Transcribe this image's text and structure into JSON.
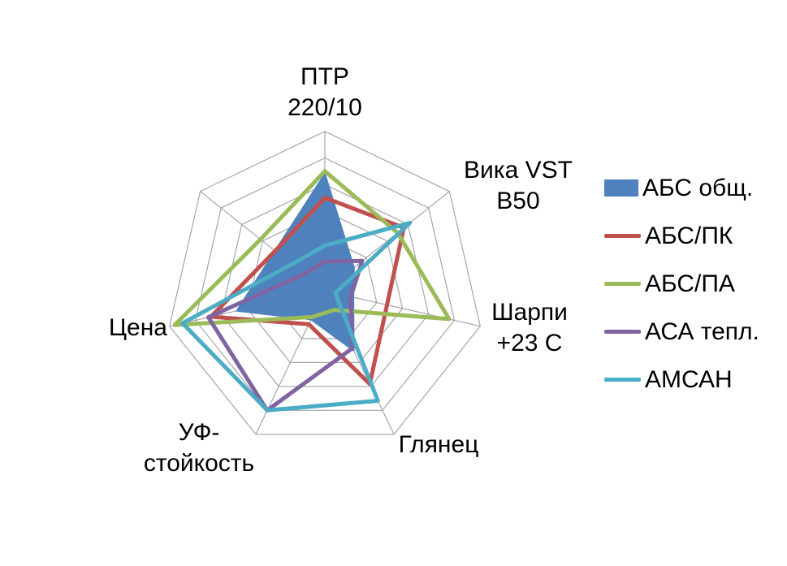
{
  "chart_data": {
    "type": "radar",
    "title": "",
    "categories": [
      "ПТР 220/10",
      "Вика VST B50",
      "Шарпи +23 С",
      "Глянец",
      "УФ-стойкость",
      "Цена",
      ""
    ],
    "category_label_lines": [
      [
        "ПТР",
        "220/10"
      ],
      [
        "Вика VST",
        "B50"
      ],
      [
        "Шарпи",
        "+23 С"
      ],
      [
        "Глянец"
      ],
      [
        "УФ-",
        "стойкость"
      ],
      [
        "Цена"
      ],
      []
    ],
    "r_axis": {
      "min": 0,
      "max": 6,
      "rings": 6,
      "tick_labels_visible": false
    },
    "grid": true,
    "legend_position": "right",
    "series": [
      {
        "name": "АБС общ.",
        "color": "#4F81BD",
        "style": "filled",
        "values": [
          4.4,
          1.4,
          1.1,
          2.5,
          1.2,
          3.4,
          2.4
        ]
      },
      {
        "name": "АБС/ПК",
        "color": "#C0504D",
        "style": "line",
        "values": [
          3.5,
          3.8,
          2.4,
          3.9,
          1.4,
          4.4,
          2.4
        ]
      },
      {
        "name": "АБС/ПА",
        "color": "#9BBB59",
        "style": "line",
        "values": [
          4.5,
          3.5,
          4.8,
          0.8,
          1.1,
          5.8,
          3.1
        ]
      },
      {
        "name": "АСА тепл.",
        "color": "#8064A2",
        "style": "line",
        "values": [
          1.1,
          1.8,
          1.0,
          2.4,
          5.0,
          4.5,
          1.0
        ]
      },
      {
        "name": "АМСАН",
        "color": "#4BACC6",
        "style": "line",
        "values": [
          1.7,
          4.1,
          0.4,
          4.6,
          5.0,
          5.5,
          1.6
        ]
      }
    ],
    "colors": {
      "gridline": "#A6A6A6",
      "text": "#000000",
      "background": "#FFFFFF"
    }
  }
}
